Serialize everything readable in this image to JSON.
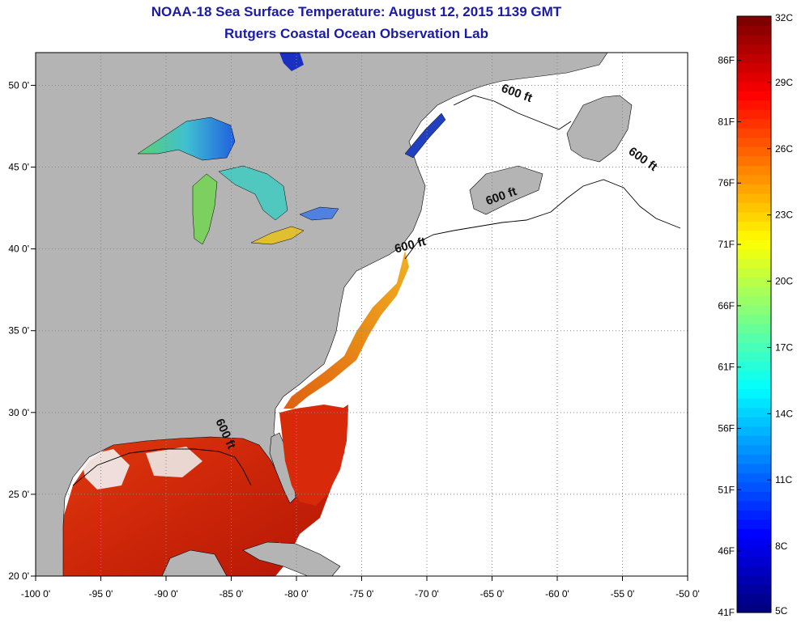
{
  "title": {
    "line1": "NOAA-18 Sea Surface Temperature:  August 12, 2015 1139 GMT",
    "line2": "Rutgers Coastal Ocean Observation Lab"
  },
  "map": {
    "lon_range": [
      -100,
      -50
    ],
    "lat_range": [
      20,
      52
    ],
    "x_ticks": [
      {
        "value": -100,
        "label": "-100 0'"
      },
      {
        "value": -95,
        "label": "-95 0'"
      },
      {
        "value": -90,
        "label": "-90 0'"
      },
      {
        "value": -85,
        "label": "-85 0'"
      },
      {
        "value": -80,
        "label": "-80 0'"
      },
      {
        "value": -75,
        "label": "-75 0'"
      },
      {
        "value": -70,
        "label": "-70 0'"
      },
      {
        "value": -65,
        "label": "-65 0'"
      },
      {
        "value": -60,
        "label": "-60 0'"
      },
      {
        "value": -55,
        "label": "-55 0'"
      },
      {
        "value": -50,
        "label": "-50 0'"
      }
    ],
    "y_ticks": [
      {
        "value": 50,
        "label": "50 0'"
      },
      {
        "value": 45,
        "label": "45 0'"
      },
      {
        "value": 40,
        "label": "40 0'"
      },
      {
        "value": 35,
        "label": "35 0'"
      },
      {
        "value": 30,
        "label": "30 0'"
      },
      {
        "value": 25,
        "label": "25 0'"
      },
      {
        "value": 20,
        "label": "20 0'"
      }
    ],
    "depth_labels": [
      {
        "text": "600 ft",
        "lon": -63.2,
        "lat": 49.3
      },
      {
        "text": "600 ft",
        "lon": -53.6,
        "lat": 45.3
      },
      {
        "text": "600 ft",
        "lon": -64.2,
        "lat": 43.0
      },
      {
        "text": "600 ft",
        "lon": -71.2,
        "lat": 40.0
      },
      {
        "text": "600 ft",
        "lon": -85.7,
        "lat": 28.6
      }
    ],
    "colors": {
      "land": "#b4b4b4",
      "ocean_no_data": "#ffffff",
      "grid": "#808080"
    }
  },
  "colorbar": {
    "celsius_labels": [
      {
        "value": 32,
        "label": "32C"
      },
      {
        "value": 29,
        "label": "29C"
      },
      {
        "value": 26,
        "label": "26C"
      },
      {
        "value": 23,
        "label": "23C"
      },
      {
        "value": 20,
        "label": "20C"
      },
      {
        "value": 17,
        "label": "17C"
      },
      {
        "value": 14,
        "label": "14C"
      },
      {
        "value": 11,
        "label": "11C"
      },
      {
        "value": 8,
        "label": "8C"
      },
      {
        "value": 5,
        "label": "5C"
      }
    ],
    "fahrenheit_labels": [
      {
        "value": 86,
        "label": "86F"
      },
      {
        "value": 81,
        "label": "81F"
      },
      {
        "value": 76,
        "label": "76F"
      },
      {
        "value": 71,
        "label": "71F"
      },
      {
        "value": 66,
        "label": "66F"
      },
      {
        "value": 61,
        "label": "61F"
      },
      {
        "value": 56,
        "label": "56F"
      },
      {
        "value": 51,
        "label": "51F"
      },
      {
        "value": 46,
        "label": "46F"
      },
      {
        "value": 41,
        "label": "41F"
      }
    ],
    "range_c": [
      5,
      32
    ],
    "colormap": "jet"
  }
}
